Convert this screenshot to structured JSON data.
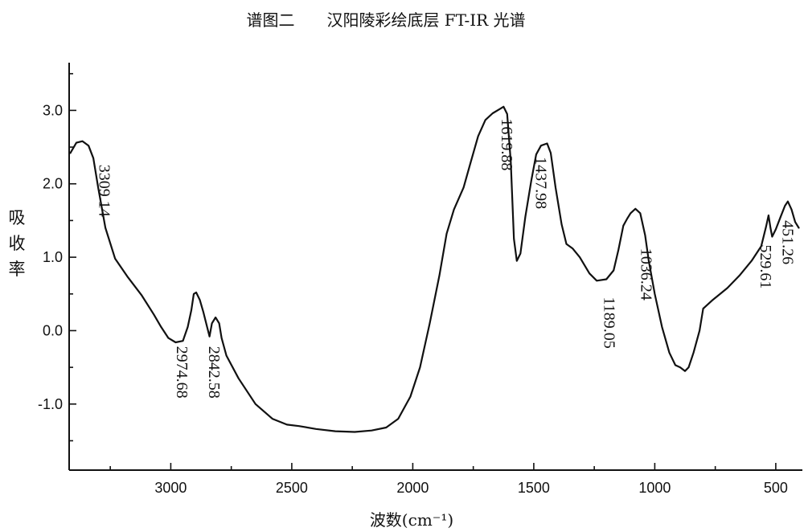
{
  "chart_data": {
    "type": "line",
    "title": "谱图二　　汉阳陵彩绘底层 FT-IR 光谱",
    "xlabel": "波数(cm⁻¹)",
    "ylabel": [
      "吸",
      "收",
      "率"
    ],
    "xlim": [
      3420,
      390
    ],
    "ylim": [
      -1.9,
      3.65
    ],
    "x_ticks": [
      3000,
      2500,
      2000,
      1500,
      1000,
      500
    ],
    "x_tick_labels": [
      "3000",
      "2500",
      "2000",
      "1500",
      "1000",
      "500"
    ],
    "y_ticks": [
      3.0,
      2.0,
      1.0,
      0.0,
      -1.0
    ],
    "y_tick_labels": [
      "3.0",
      "2.0",
      "1.0",
      "0.0",
      "-1.0"
    ],
    "grid": false,
    "series": [
      {
        "points": [
          [
            3415,
            2.42
          ],
          [
            3390,
            2.56
          ],
          [
            3365,
            2.58
          ],
          [
            3340,
            2.52
          ],
          [
            3320,
            2.35
          ],
          [
            3300,
            1.95
          ],
          [
            3270,
            1.4
          ],
          [
            3230,
            0.98
          ],
          [
            3180,
            0.74
          ],
          [
            3120,
            0.48
          ],
          [
            3070,
            0.22
          ],
          [
            3040,
            0.05
          ],
          [
            3010,
            -0.1
          ],
          [
            2980,
            -0.16
          ],
          [
            2950,
            -0.14
          ],
          [
            2930,
            0.05
          ],
          [
            2915,
            0.28
          ],
          [
            2905,
            0.5
          ],
          [
            2895,
            0.52
          ],
          [
            2880,
            0.42
          ],
          [
            2865,
            0.25
          ],
          [
            2850,
            0.05
          ],
          [
            2840,
            -0.08
          ],
          [
            2830,
            0.1
          ],
          [
            2815,
            0.18
          ],
          [
            2800,
            0.1
          ],
          [
            2790,
            -0.1
          ],
          [
            2770,
            -0.34
          ],
          [
            2720,
            -0.65
          ],
          [
            2650,
            -1.0
          ],
          [
            2580,
            -1.2
          ],
          [
            2520,
            -1.28
          ],
          [
            2470,
            -1.3
          ],
          [
            2400,
            -1.34
          ],
          [
            2320,
            -1.37
          ],
          [
            2240,
            -1.38
          ],
          [
            2170,
            -1.36
          ],
          [
            2110,
            -1.32
          ],
          [
            2060,
            -1.2
          ],
          [
            2010,
            -0.9
          ],
          [
            1970,
            -0.5
          ],
          [
            1930,
            0.1
          ],
          [
            1890,
            0.75
          ],
          [
            1860,
            1.32
          ],
          [
            1830,
            1.65
          ],
          [
            1790,
            1.95
          ],
          [
            1760,
            2.3
          ],
          [
            1730,
            2.65
          ],
          [
            1700,
            2.87
          ],
          [
            1670,
            2.96
          ],
          [
            1640,
            3.02
          ],
          [
            1625,
            3.05
          ],
          [
            1610,
            2.95
          ],
          [
            1595,
            2.3
          ],
          [
            1582,
            1.25
          ],
          [
            1570,
            0.95
          ],
          [
            1555,
            1.05
          ],
          [
            1535,
            1.55
          ],
          [
            1510,
            2.05
          ],
          [
            1490,
            2.4
          ],
          [
            1470,
            2.52
          ],
          [
            1445,
            2.55
          ],
          [
            1430,
            2.42
          ],
          [
            1410,
            1.95
          ],
          [
            1385,
            1.45
          ],
          [
            1365,
            1.18
          ],
          [
            1340,
            1.12
          ],
          [
            1310,
            1.0
          ],
          [
            1270,
            0.78
          ],
          [
            1240,
            0.68
          ],
          [
            1200,
            0.7
          ],
          [
            1170,
            0.82
          ],
          [
            1150,
            1.1
          ],
          [
            1130,
            1.43
          ],
          [
            1115,
            1.52
          ],
          [
            1100,
            1.6
          ],
          [
            1080,
            1.66
          ],
          [
            1060,
            1.6
          ],
          [
            1040,
            1.3
          ],
          [
            1025,
            0.95
          ],
          [
            1000,
            0.5
          ],
          [
            970,
            0.05
          ],
          [
            940,
            -0.3
          ],
          [
            915,
            -0.47
          ],
          [
            895,
            -0.5
          ],
          [
            875,
            -0.55
          ],
          [
            860,
            -0.5
          ],
          [
            840,
            -0.3
          ],
          [
            815,
            0.0
          ],
          [
            800,
            0.3
          ],
          [
            760,
            0.42
          ],
          [
            700,
            0.58
          ],
          [
            650,
            0.75
          ],
          [
            600,
            0.95
          ],
          [
            560,
            1.15
          ],
          [
            540,
            1.42
          ],
          [
            530,
            1.57
          ],
          [
            522,
            1.4
          ],
          [
            515,
            1.28
          ],
          [
            500,
            1.38
          ],
          [
            480,
            1.55
          ],
          [
            462,
            1.7
          ],
          [
            450,
            1.76
          ],
          [
            435,
            1.65
          ],
          [
            420,
            1.48
          ],
          [
            405,
            1.4
          ]
        ]
      }
    ],
    "annotations": [
      {
        "text": "3309.14",
        "x": 3309.14,
        "y": 2.35
      },
      {
        "text": "2974.68",
        "x": 2974.68,
        "y": -0.1
      },
      {
        "text": "2842.58",
        "x": 2842.58,
        "y": -0.08
      },
      {
        "text": "1619.88",
        "x": 1619.88,
        "y": 3.0
      },
      {
        "text": "1437.98",
        "x": 1437.98,
        "y": 2.5
      },
      {
        "text": "1189.05",
        "x": 1189.05,
        "y": 0.7
      },
      {
        "text": "1036.24",
        "x": 1036.24,
        "y": 1.3
      },
      {
        "text": "529.61",
        "x": 529.61,
        "y": 1.5
      },
      {
        "text": "451.26",
        "x": 451.26,
        "y": 1.7
      }
    ]
  }
}
